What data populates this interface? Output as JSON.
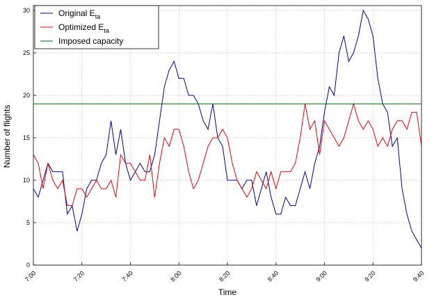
{
  "chart_data": {
    "type": "line",
    "x_label": "Time",
    "y_label": "Number of flights",
    "categories": [
      "7:00",
      null,
      null,
      null,
      null,
      null,
      null,
      null,
      null,
      null,
      "7:20",
      null,
      null,
      null,
      null,
      null,
      null,
      null,
      null,
      null,
      "7:40",
      null,
      null,
      null,
      null,
      null,
      null,
      null,
      null,
      null,
      "8:00",
      null,
      null,
      null,
      null,
      null,
      null,
      null,
      null,
      null,
      "8:20",
      null,
      null,
      null,
      null,
      null,
      null,
      null,
      null,
      null,
      "8:40",
      null,
      null,
      null,
      null,
      null,
      null,
      null,
      null,
      null,
      "9:00",
      null,
      null,
      null,
      null,
      null,
      null,
      null,
      null,
      null,
      "9:20",
      null,
      null,
      null,
      null,
      null,
      null,
      null,
      null,
      null,
      "9:40"
    ],
    "ylim": [
      0,
      30
    ],
    "yticks": [
      0,
      5,
      10,
      15,
      20,
      25,
      30
    ],
    "grid": true,
    "legend_position": "upper-left",
    "series": [
      {
        "name": "Original E",
        "name_subscript": "ta",
        "color": "#00008b",
        "values": [
          9,
          8,
          10,
          12,
          11,
          11,
          11,
          6,
          7,
          4,
          6,
          9,
          10,
          10,
          12,
          13,
          17,
          13,
          16,
          12,
          10,
          11,
          12,
          11,
          11,
          13,
          17,
          21,
          23,
          24,
          22,
          22,
          20,
          20,
          19,
          17,
          16,
          19,
          15,
          14,
          10,
          10,
          10,
          9,
          10,
          10,
          7,
          9,
          11,
          8,
          6,
          6,
          8,
          7,
          7,
          9,
          11,
          9,
          12,
          14,
          18,
          21,
          20,
          25,
          27,
          24,
          25,
          27,
          30,
          29,
          27,
          22,
          19,
          18,
          14,
          15,
          9,
          6,
          4,
          3,
          2
        ]
      },
      {
        "name": "Optimized E",
        "name_subscript": "ta",
        "color": "#e8000b",
        "values": [
          13,
          12,
          9,
          12,
          10,
          9,
          10,
          7,
          7,
          9,
          9,
          8,
          9,
          10,
          9,
          9,
          10,
          8,
          13,
          12,
          12,
          11,
          10,
          10,
          13,
          8,
          12,
          15,
          14,
          16,
          16,
          14,
          11,
          9,
          10,
          12,
          14,
          15,
          15,
          16,
          15,
          12,
          10,
          9,
          8,
          9,
          11,
          10,
          9,
          11,
          9,
          11,
          11,
          11,
          12,
          15,
          19,
          16,
          17,
          13,
          17,
          16,
          15,
          14,
          15,
          17,
          19,
          17,
          16,
          17,
          16,
          14,
          15,
          14,
          16,
          17,
          17,
          16,
          18,
          18,
          14
        ]
      },
      {
        "name": "Imposed capacity",
        "color": "#006400",
        "values": [
          19,
          19,
          19,
          19,
          19,
          19,
          19,
          19,
          19,
          19,
          19,
          19,
          19,
          19,
          19,
          19,
          19,
          19,
          19,
          19,
          19,
          19,
          19,
          19,
          19,
          19,
          19,
          19,
          19,
          19,
          19,
          19,
          19,
          19,
          19,
          19,
          19,
          19,
          19,
          19,
          19,
          19,
          19,
          19,
          19,
          19,
          19,
          19,
          19,
          19,
          19,
          19,
          19,
          19,
          19,
          19,
          19,
          19,
          19,
          19,
          19,
          19,
          19,
          19,
          19,
          19,
          19,
          19,
          19,
          19,
          19,
          19,
          19,
          19,
          19,
          19,
          19,
          19,
          19,
          19,
          19
        ]
      }
    ]
  }
}
